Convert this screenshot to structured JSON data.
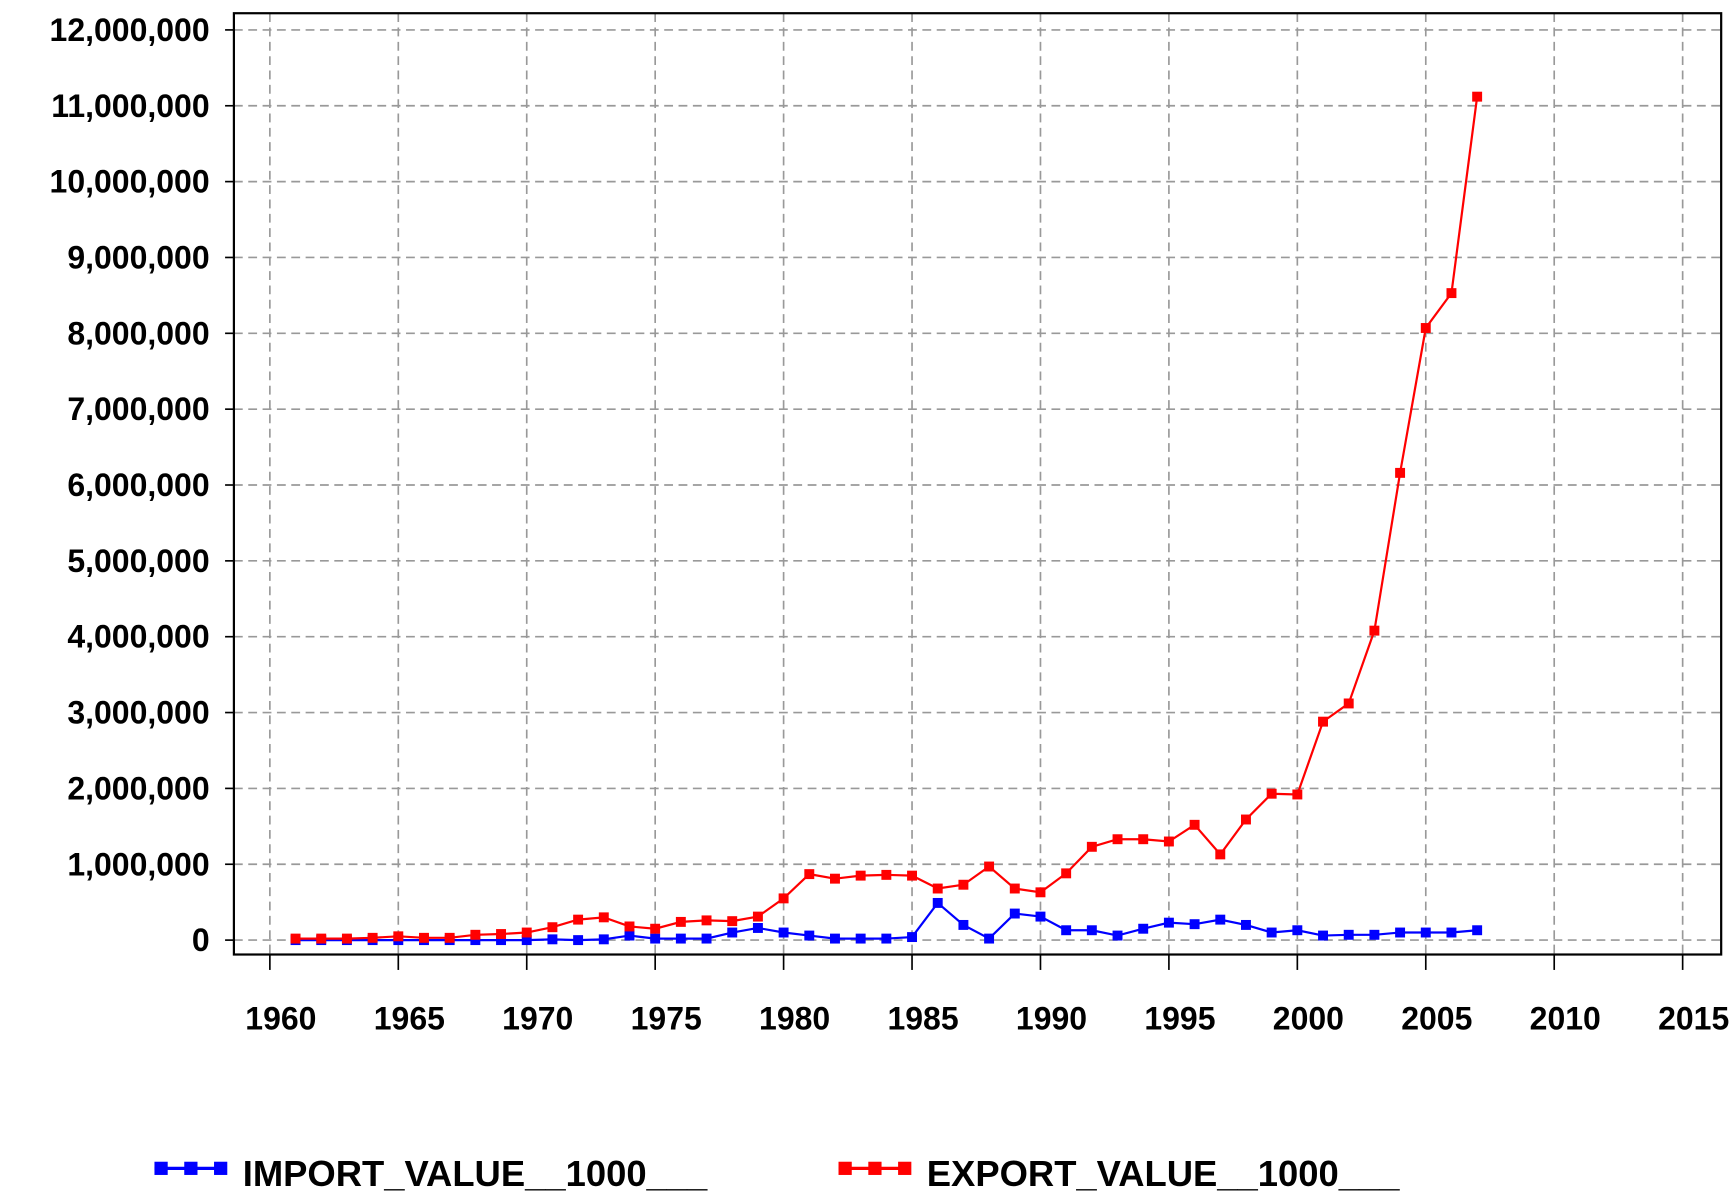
{
  "chart_data": {
    "type": "line",
    "x": [
      1961,
      1962,
      1963,
      1964,
      1965,
      1966,
      1967,
      1968,
      1969,
      1970,
      1971,
      1972,
      1973,
      1974,
      1975,
      1976,
      1977,
      1978,
      1979,
      1980,
      1981,
      1982,
      1983,
      1984,
      1985,
      1986,
      1987,
      1988,
      1989,
      1990,
      1991,
      1992,
      1993,
      1994,
      1995,
      1996,
      1997,
      1998,
      1999,
      2000,
      2001,
      2002,
      2003,
      2004,
      2005,
      2006,
      2007
    ],
    "series": [
      {
        "name": "IMPORT_VALUE__1000___",
        "color": "#0000ff",
        "values": [
          0,
          0,
          0,
          0,
          0,
          0,
          0,
          0,
          0,
          0,
          10000,
          0,
          10000,
          60000,
          20000,
          20000,
          20000,
          100000,
          160000,
          100000,
          60000,
          20000,
          20000,
          20000,
          40000,
          490000,
          200000,
          20000,
          350000,
          310000,
          130000,
          130000,
          60000,
          150000,
          230000,
          210000,
          270000,
          200000,
          100000,
          130000,
          60000,
          70000,
          70000,
          100000,
          100000,
          100000,
          130000
        ]
      },
      {
        "name": "EXPORT_VALUE__1000___",
        "color": "#ff0000",
        "values": [
          20000,
          20000,
          20000,
          30000,
          50000,
          30000,
          30000,
          70000,
          80000,
          100000,
          170000,
          270000,
          300000,
          180000,
          150000,
          240000,
          260000,
          250000,
          310000,
          550000,
          870000,
          810000,
          850000,
          860000,
          850000,
          680000,
          730000,
          970000,
          680000,
          630000,
          880000,
          1230000,
          1330000,
          1330000,
          1300000,
          1520000,
          1130000,
          1590000,
          1930000,
          1920000,
          2880000,
          3120000,
          4080000,
          6160000,
          8070000,
          8530000,
          11120000
        ]
      }
    ],
    "xlim": [
      1958.6,
      2016.5
    ],
    "xticks": [
      1960,
      1965,
      1970,
      1975,
      1980,
      1985,
      1990,
      1995,
      2000,
      2005,
      2010,
      2015
    ],
    "ylim": [
      -190000,
      12220000
    ],
    "yticks": [
      0,
      {
        "value": 1000000,
        "label": "1,000,000"
      },
      {
        "value": 2000000,
        "label": "2,000,000"
      },
      {
        "value": 3000000,
        "label": "3,000,000"
      },
      {
        "value": 4000000,
        "label": "4,000,000"
      },
      {
        "value": 5000000,
        "label": "5,000,000"
      },
      {
        "value": 6000000,
        "label": "6,000,000"
      },
      {
        "value": 7000000,
        "label": "7,000,000"
      },
      {
        "value": 8000000,
        "label": "8,000,000"
      },
      {
        "value": 9000000,
        "label": "9,000,000"
      },
      {
        "value": 10000000,
        "label": "10,000,000"
      },
      {
        "value": 11000000,
        "label": "11,000,000"
      },
      {
        "value": 12000000,
        "label": "12,000,000"
      }
    ],
    "grid": true,
    "legend": "bottom"
  }
}
